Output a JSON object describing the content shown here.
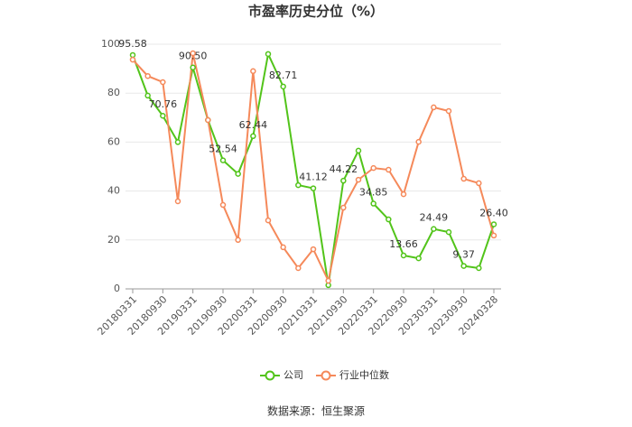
{
  "chart_data": {
    "type": "line",
    "title": "市盈率历史分位（%）",
    "source": "数据来源：恒生聚源",
    "categories": [
      "20180331",
      null,
      "20180930",
      null,
      "20190331",
      null,
      "20190930",
      null,
      "20200331",
      null,
      "20200930",
      null,
      "20210331",
      null,
      "20210930",
      null,
      "20220331",
      null,
      "20220930",
      null,
      "20230331",
      null,
      "20230930",
      null,
      "20240328"
    ],
    "series": [
      {
        "name": "公司",
        "color": "#52c41a",
        "values": [
          95.58,
          79,
          70.76,
          60,
          90.5,
          69,
          52.54,
          47,
          62.44,
          96,
          82.71,
          42.4,
          41.12,
          1.5,
          44.22,
          56.5,
          34.85,
          28.4,
          13.66,
          12.5,
          24.49,
          23.2,
          9.37,
          8.5,
          26.4
        ],
        "value_labels": [
          "95.58",
          null,
          "70.76",
          null,
          "90.50",
          null,
          "52.54",
          null,
          "62.44",
          null,
          "82.71",
          null,
          "41.12",
          null,
          "44.22",
          null,
          "34.85",
          null,
          "13.66",
          null,
          "24.49",
          null,
          "9.37",
          null,
          "26.40"
        ]
      },
      {
        "name": "行业中位数",
        "color": "#f5895a",
        "values": [
          93.7,
          87,
          84.5,
          35.8,
          96.3,
          69,
          34.3,
          20,
          89,
          28,
          17,
          8.5,
          16.2,
          3.3,
          33.2,
          44.6,
          49.4,
          48.7,
          38.7,
          60.1,
          74.2,
          72.7,
          45,
          43.2,
          21.8
        ]
      }
    ],
    "ylim": [
      0,
      100
    ],
    "yticks": [
      0,
      20,
      40,
      60,
      80,
      100
    ],
    "grid": true,
    "legend": "bottom"
  }
}
